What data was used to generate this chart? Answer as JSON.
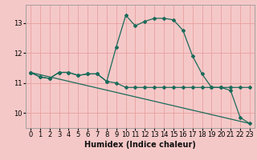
{
  "xlabel": "Humidex (Indice chaleur)",
  "bg_color": "#f5c8c8",
  "plot_bg_color": "#f5c8c8",
  "grid_color": "#e8a0a0",
  "line_color": "#1a6b5a",
  "xlim": [
    -0.5,
    23.5
  ],
  "ylim": [
    9.5,
    13.6
  ],
  "yticks": [
    10,
    11,
    12,
    13
  ],
  "xticks": [
    0,
    1,
    2,
    3,
    4,
    5,
    6,
    7,
    8,
    9,
    10,
    11,
    12,
    13,
    14,
    15,
    16,
    17,
    18,
    19,
    20,
    21,
    22,
    23
  ],
  "line1_x": [
    0,
    1,
    2,
    3,
    4,
    5,
    6,
    7,
    8,
    9,
    10,
    11,
    12,
    13,
    14,
    15,
    16,
    17,
    18,
    19,
    20,
    21,
    22,
    23
  ],
  "line1_y": [
    11.35,
    11.2,
    11.15,
    11.35,
    11.35,
    11.25,
    11.3,
    11.3,
    11.05,
    11.0,
    10.85,
    10.85,
    10.85,
    10.85,
    10.85,
    10.85,
    10.85,
    10.85,
    10.85,
    10.85,
    10.85,
    10.85,
    10.85,
    10.85
  ],
  "line2_x": [
    0,
    1,
    2,
    3,
    4,
    5,
    6,
    7,
    8,
    9,
    10,
    11,
    12,
    13,
    14,
    15,
    16,
    17,
    18,
    19,
    20,
    21,
    22,
    23
  ],
  "line2_y": [
    11.35,
    11.2,
    11.15,
    11.35,
    11.35,
    11.25,
    11.3,
    11.3,
    11.05,
    12.2,
    13.25,
    12.9,
    13.05,
    13.15,
    13.15,
    13.1,
    12.75,
    11.9,
    11.3,
    10.85,
    10.85,
    10.75,
    9.85,
    9.65
  ],
  "line3_x": [
    0,
    23
  ],
  "line3_y": [
    11.35,
    9.65
  ],
  "markersize": 2.0,
  "linewidth": 0.9,
  "xlabel_fontsize": 7,
  "tick_fontsize": 6
}
